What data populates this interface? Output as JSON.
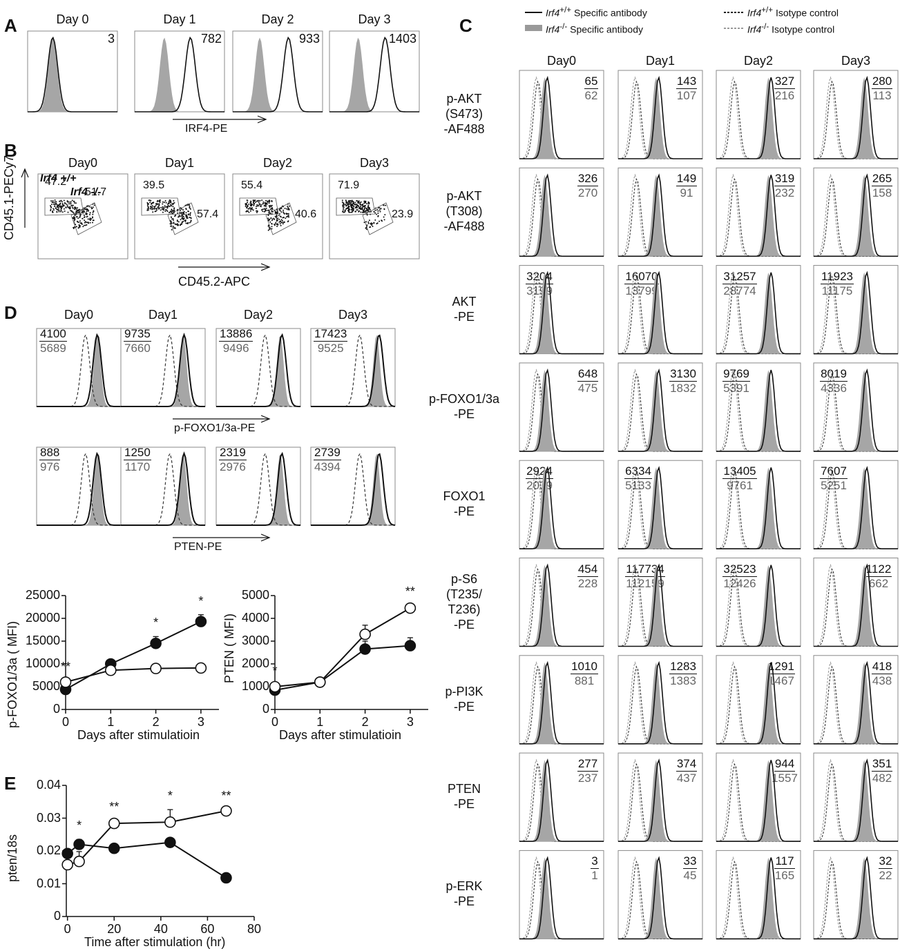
{
  "panels": {
    "A": {
      "label": "A",
      "days": [
        "Day 0",
        "Day 1",
        "Day 2",
        "Day 3"
      ],
      "values": [
        "3",
        "782",
        "933",
        "1403"
      ],
      "axis": "IRF4-PE"
    },
    "B": {
      "label": "B",
      "days": [
        "Day0",
        "Day1",
        "Day2",
        "Day3"
      ],
      "ylabel": "CD45.1-PECy7",
      "xlabel": "CD45.2-APC",
      "gate_wt": "Irf4 +/+",
      "gate_ko": "Irf4 -/-",
      "wt": [
        "47.2",
        "39.5",
        "55.4",
        "71.9"
      ],
      "ko": [
        "51.7",
        "57.4",
        "40.6",
        "23.9"
      ]
    },
    "C": {
      "label": "C",
      "days": [
        "Day0",
        "Day1",
        "Day2",
        "Day3"
      ],
      "legend": {
        "wt_specific_gene": "Irf4",
        "wt_specific_sup": "+/+",
        "wt_specific_text": " Specific antibody",
        "ko_specific_gene": "Irf4",
        "ko_specific_sup": "-/-",
        "ko_specific_text": " Specific antibody",
        "wt_iso_gene": "Irf4",
        "wt_iso_sup": "+/+",
        "wt_iso_text": " Isotype control",
        "ko_iso_gene": "Irf4",
        "ko_iso_sup": "-/-",
        "ko_iso_text": " Isotype control"
      },
      "rows": [
        {
          "label": [
            "p-AKT",
            "(S473)",
            "-AF488"
          ],
          "top": [
            "65",
            "143",
            "327",
            "280"
          ],
          "bot": [
            "62",
            "107",
            "216",
            "113"
          ],
          "pos": "right"
        },
        {
          "label": [
            "p-AKT",
            "(T308)",
            "-AF488"
          ],
          "top": [
            "326",
            "149",
            "319",
            "265"
          ],
          "bot": [
            "270",
            "91",
            "232",
            "158"
          ],
          "pos": "right"
        },
        {
          "label": [
            "AKT",
            "-PE"
          ],
          "top": [
            "3204",
            "16070",
            "31257",
            "11923"
          ],
          "bot": [
            "3199",
            "13799",
            "28774",
            "11175"
          ],
          "pos": "left"
        },
        {
          "label": [
            "p-FOXO1/3a",
            "-PE"
          ],
          "top": [
            "648",
            "3130",
            "9769",
            "8019"
          ],
          "bot": [
            "475",
            "1832",
            "5391",
            "4336"
          ],
          "pos": "mixed"
        },
        {
          "label": [
            "FOXO1",
            "-PE"
          ],
          "top": [
            "2924",
            "6334",
            "13405",
            "7607"
          ],
          "bot": [
            "2039",
            "5133",
            "9761",
            "5251"
          ],
          "pos": "left"
        },
        {
          "label": [
            "p-S6",
            "(T235/",
            "T236)",
            "-PE"
          ],
          "top": [
            "454",
            "117734",
            "32523",
            "1122"
          ],
          "bot": [
            "228",
            "112159",
            "12426",
            "662"
          ],
          "pos": "mixed2"
        },
        {
          "label": [
            "p-PI3K",
            "-PE"
          ],
          "top": [
            "1010",
            "1283",
            "1291",
            "418"
          ],
          "bot": [
            "881",
            "1383",
            "1467",
            "438"
          ],
          "pos": "right"
        },
        {
          "label": [
            "PTEN",
            "-PE"
          ],
          "top": [
            "277",
            "374",
            "944",
            "351"
          ],
          "bot": [
            "237",
            "437",
            "1557",
            "482"
          ],
          "pos": "right"
        },
        {
          "label": [
            "p-ERK",
            "-PE"
          ],
          "top": [
            "3",
            "33",
            "117",
            "32"
          ],
          "bot": [
            "1",
            "45",
            "165",
            "22"
          ],
          "pos": "right"
        }
      ]
    },
    "D": {
      "label": "D",
      "days": [
        "Day0",
        "Day1",
        "Day2",
        "Day3"
      ],
      "foxo_axis": "p-FOXO1/3a-PE",
      "pten_axis": "PTEN-PE",
      "foxo_top": [
        "4100",
        "9735",
        "13886",
        "17423"
      ],
      "foxo_bot": [
        "5689",
        "7660",
        "9496",
        "9525"
      ],
      "pten_top": [
        "888",
        "1250",
        "2319",
        "2739"
      ],
      "pten_bot": [
        "976",
        "1170",
        "2976",
        "4394"
      ]
    },
    "E": {
      "label": "E"
    }
  },
  "chart_data": [
    {
      "type": "line",
      "ylabel": "p-FOXO1/3a ( MFI)",
      "xlabel": "Days after stimulatioin",
      "x": [
        0,
        1,
        2,
        3
      ],
      "ylim": [
        0,
        25000
      ],
      "yticks": [
        "0",
        "5000",
        "10000",
        "15000",
        "20000",
        "25000"
      ],
      "xticks": [
        "0",
        "1",
        "2",
        "3"
      ],
      "series": [
        {
          "marker": "filled",
          "values": [
            4400,
            10000,
            14500,
            19300
          ],
          "err": [
            600,
            500,
            1500,
            1500
          ]
        },
        {
          "marker": "open",
          "values": [
            6000,
            8600,
            9000,
            9100
          ],
          "err": [
            400,
            1100,
            900,
            300
          ]
        }
      ],
      "annotations": [
        {
          "x": 0,
          "text": "**"
        },
        {
          "x": 2,
          "text": "*"
        },
        {
          "x": 3,
          "text": "*"
        }
      ]
    },
    {
      "type": "line",
      "ylabel": "PTEN ( MFI)",
      "xlabel": "Days after stimulatioin",
      "x": [
        0,
        1,
        2,
        3
      ],
      "ylim": [
        0,
        5000
      ],
      "yticks": [
        "0",
        "1000",
        "2000",
        "3000",
        "4000",
        "5000"
      ],
      "xticks": [
        "0",
        "1",
        "2",
        "3"
      ],
      "series": [
        {
          "marker": "filled",
          "values": [
            850,
            1200,
            2650,
            2800
          ],
          "err": [
            100,
            50,
            350,
            350
          ]
        },
        {
          "marker": "open",
          "values": [
            1000,
            1200,
            3300,
            4450
          ],
          "err": [
            100,
            50,
            400,
            120
          ]
        }
      ],
      "annotations": [
        {
          "x": 0,
          "text": "*"
        },
        {
          "x": 3,
          "text": "**"
        }
      ]
    },
    {
      "type": "line",
      "ylabel": "pten/18s",
      "xlabel": "Time after stimulation (hr)",
      "x": [
        0,
        5,
        20,
        44,
        68
      ],
      "ylim": [
        0,
        0.04
      ],
      "xlim": [
        0,
        80
      ],
      "yticks": [
        "0",
        "0.01",
        "0.02",
        "0.03",
        "0.04"
      ],
      "xticks": [
        "0",
        "20",
        "40",
        "60",
        "80"
      ],
      "series": [
        {
          "marker": "filled",
          "values": [
            0.0192,
            0.022,
            0.0208,
            0.0226,
            0.0118
          ],
          "err": [
            0.001,
            0.0015,
            0.0005,
            0.0008,
            0.0004
          ]
        },
        {
          "marker": "open",
          "values": [
            0.0158,
            0.0168,
            0.0284,
            0.0288,
            0.0322
          ],
          "err": [
            0.001,
            0.003,
            0.0008,
            0.0038,
            0.0005
          ]
        }
      ],
      "annotations": [
        {
          "x": 5,
          "text": "*"
        },
        {
          "x": 20,
          "text": "**"
        },
        {
          "x": 44,
          "text": "*"
        },
        {
          "x": 68,
          "text": "**"
        }
      ]
    }
  ]
}
